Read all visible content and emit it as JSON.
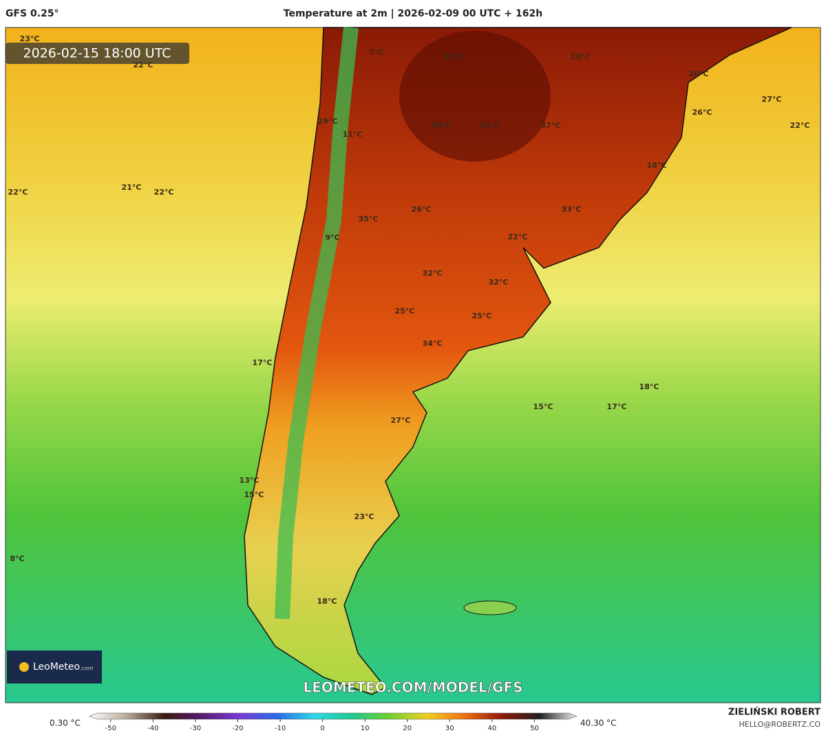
{
  "header": {
    "model": "GFS 0.25°",
    "title": "Temperature at 2m | 2026-02-09 00 UTC + 162h"
  },
  "map": {
    "valid_time": "2026-02-15 18:00 UTC",
    "labels": [
      "23°C",
      "22°C",
      "7°C",
      "40°C",
      "25°C",
      "20°C",
      "27°C",
      "26°C",
      "22°C",
      "29°C",
      "11°C",
      "38°C",
      "33°C",
      "37°C",
      "18°C",
      "22°C",
      "21°C",
      "22°C",
      "26°C",
      "33°C",
      "35°C",
      "9°C",
      "22°C",
      "32°C",
      "32°C",
      "25°C",
      "25°C",
      "34°C",
      "17°C",
      "18°C",
      "15°C",
      "17°C",
      "27°C",
      "13°C",
      "15°C",
      "23°C",
      "8°C",
      "18°C"
    ],
    "watermark": "LEOMETEO.COM/MODEL/GFS",
    "logo_brand": "LeoMeteo",
    "logo_suffix": ".com"
  },
  "legend": {
    "min_label": "0.30 °C",
    "max_label": "40.30 °C",
    "lim": [
      -55,
      60
    ],
    "ticks": [
      -50,
      -40,
      -30,
      -20,
      -10,
      0,
      10,
      20,
      30,
      40,
      50
    ],
    "colors": [
      "#ffffff",
      "#b8a898",
      "#3a1a10",
      "#5a1a70",
      "#7a3ad8",
      "#2a6ae8",
      "#30d8e8",
      "#20c890",
      "#70d030",
      "#f0d020",
      "#f07010",
      "#901808",
      "#202020",
      "#f0f0f0"
    ]
  },
  "footer": {
    "author": "ZIELIŃSKI ROBERT",
    "email": "HELLO@ROBERTZ.CO"
  }
}
